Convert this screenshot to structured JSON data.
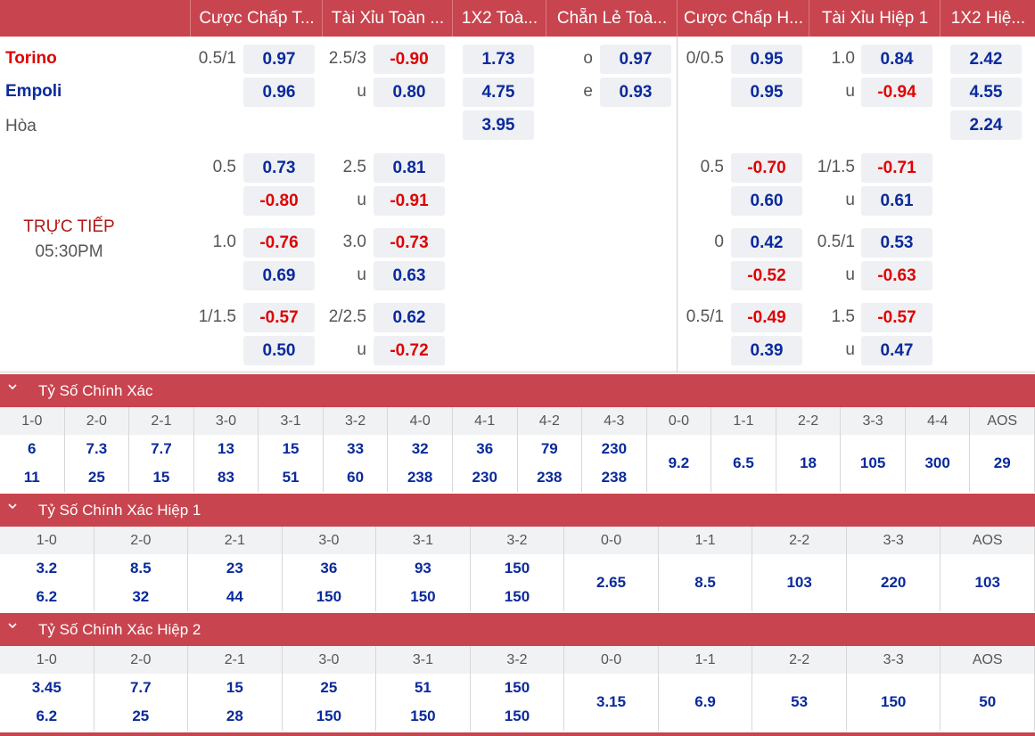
{
  "header": [
    "Cược Chấp T...",
    "Tài Xỉu Toàn ...",
    "1X2 Toà...",
    "Chẵn Lẻ Toà...",
    "Cược Chấp H...",
    "Tài Xỉu Hiệp 1",
    "1X2 Hiệ..."
  ],
  "match": {
    "home": "Torino",
    "away": "Empoli",
    "draw": "Hòa",
    "status": "TRỰC TIẾP",
    "time": "05:30PM",
    "colors": {
      "home": "#e00000",
      "away": "#0a2a9c"
    }
  },
  "main": {
    "ah_ft": [
      {
        "line": "0.5/1",
        "home": "0.97",
        "away": "0.96"
      },
      {
        "line": "0.5",
        "home": "0.73",
        "away": "-0.80"
      },
      {
        "line": "1.0",
        "home": "-0.76",
        "away": "0.69"
      },
      {
        "line": "1/1.5",
        "home": "-0.57",
        "away": "0.50"
      }
    ],
    "ou_ft": [
      {
        "line": "2.5/3",
        "u": "u",
        "over": "-0.90",
        "under": "0.80"
      },
      {
        "line": "2.5",
        "u": "u",
        "over": "0.81",
        "under": "-0.91"
      },
      {
        "line": "3.0",
        "u": "u",
        "over": "-0.73",
        "under": "0.63"
      },
      {
        "line": "2/2.5",
        "u": "u",
        "over": "0.62",
        "under": "-0.72"
      }
    ],
    "x12_ft": [
      "1.73",
      "4.75",
      "3.95"
    ],
    "oe_ft": {
      "o": "o",
      "e": "e",
      "odd": "0.97",
      "even": "0.93"
    },
    "ah_h1": [
      {
        "line": "0/0.5",
        "home": "0.95",
        "away": "0.95"
      },
      {
        "line": "0.5",
        "home": "-0.70",
        "away": "0.60"
      },
      {
        "line": "0",
        "home": "0.42",
        "away": "-0.52"
      },
      {
        "line": "0.5/1",
        "home": "-0.49",
        "away": "0.39"
      }
    ],
    "ou_h1": [
      {
        "line": "1.0",
        "u": "u",
        "over": "0.84",
        "under": "-0.94"
      },
      {
        "line": "1/1.5",
        "u": "u",
        "over": "-0.71",
        "under": "0.61"
      },
      {
        "line": "0.5/1",
        "u": "u",
        "over": "0.53",
        "under": "-0.63"
      },
      {
        "line": "1.5",
        "u": "u",
        "over": "-0.57",
        "under": "0.47"
      }
    ],
    "x12_h1": [
      "2.42",
      "4.55",
      "2.24"
    ]
  },
  "sections": [
    {
      "title": "Tỷ Số Chính Xác",
      "cols": [
        "1-0",
        "2-0",
        "2-1",
        "3-0",
        "3-1",
        "3-2",
        "4-0",
        "4-1",
        "4-2",
        "4-3",
        "0-0",
        "1-1",
        "2-2",
        "3-3",
        "4-4",
        "AOS"
      ],
      "home": [
        "6",
        "7.3",
        "7.7",
        "13",
        "15",
        "33",
        "32",
        "36",
        "79",
        "230",
        "9.2",
        "6.5",
        "18",
        "105",
        "300",
        "29"
      ],
      "away": [
        "11",
        "25",
        "15",
        "83",
        "51",
        "60",
        "238",
        "230",
        "238",
        "238",
        "",
        "",
        "",
        "",
        "",
        ""
      ],
      "paired": 10
    },
    {
      "title": "Tỷ Số Chính Xác Hiệp 1",
      "cols": [
        "1-0",
        "2-0",
        "2-1",
        "3-0",
        "3-1",
        "3-2",
        "0-0",
        "1-1",
        "2-2",
        "3-3",
        "AOS"
      ],
      "home": [
        "3.2",
        "8.5",
        "23",
        "36",
        "93",
        "150",
        "2.65",
        "8.5",
        "103",
        "220",
        "103"
      ],
      "away": [
        "6.2",
        "32",
        "44",
        "150",
        "150",
        "150",
        "",
        "",
        "",
        "",
        ""
      ],
      "paired": 6
    },
    {
      "title": "Tỷ Số Chính Xác Hiệp 2",
      "cols": [
        "1-0",
        "2-0",
        "2-1",
        "3-0",
        "3-1",
        "3-2",
        "0-0",
        "1-1",
        "2-2",
        "3-3",
        "AOS"
      ],
      "home": [
        "3.45",
        "7.7",
        "15",
        "25",
        "51",
        "150",
        "3.15",
        "6.9",
        "53",
        "150",
        "50"
      ],
      "away": [
        "6.2",
        "25",
        "28",
        "150",
        "150",
        "150",
        "",
        "",
        "",
        "",
        ""
      ],
      "paired": 6
    }
  ]
}
